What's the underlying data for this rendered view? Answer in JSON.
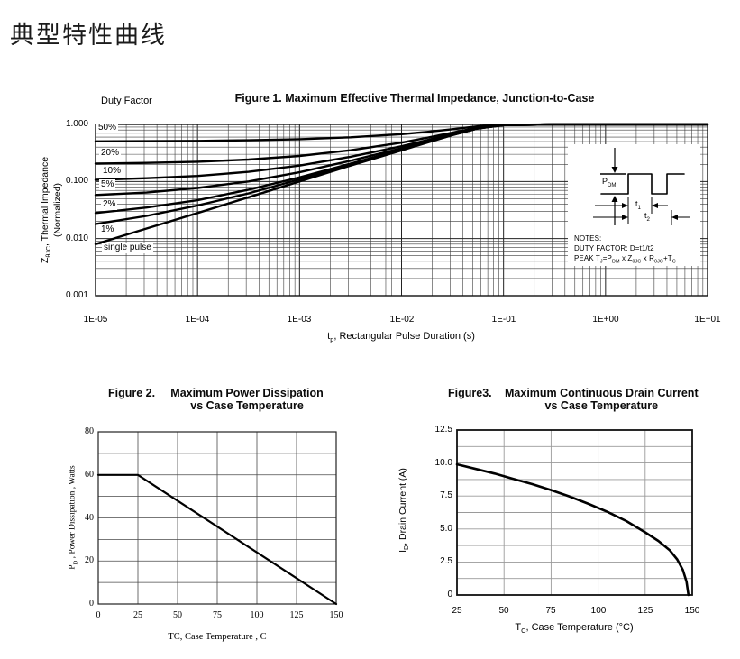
{
  "page_title": "典型特性曲线",
  "fig1": {
    "title": "Figure 1. Maximum Effective Thermal Impedance, Junction-to-Case",
    "duty_factor": "Duty Factor",
    "ylabel_line1": "Z~θJC~, Thermal Impedance",
    "ylabel_line2": "(Normalized)",
    "xlabel": "t~p~, Rectangular Pulse Duration (s)",
    "inset": {
      "pdm": "P~DM~",
      "t1": "t~1~",
      "t2": "t~2~",
      "notes1": "NOTES:",
      "notes2": "DUTY FACTOR: D=t1/t2",
      "notes3": "PEAK T~J~=P~DM~ x Z~θJC~ x R~θJC~+T~C~"
    }
  },
  "fig2": {
    "figure_label": "Figure 2.",
    "title_line1": "Maximum Power Dissipation",
    "title_line2": "vs Case Temperature",
    "ylabel": "P~D~ , Power Dissipation ,  Watts",
    "xlabel": "TC, Case Temperature , C"
  },
  "fig3": {
    "figure_label": "Figure3.",
    "title_line1": "Maximum Continuous Drain Current",
    "title_line2": "vs Case Temperature",
    "ylabel": "I~D~, Drain Current (A)",
    "xlabel": "T~C~, Case Temperature (°C)"
  },
  "chart_data": [
    {
      "id": "fig1",
      "type": "line",
      "x_scale": "log",
      "y_scale": "log",
      "title": "Figure 1. Maximum Effective Thermal Impedance, Junction-to-Case",
      "xlabel": "tp, Rectangular Pulse Duration (s)",
      "ylabel": "ZθJC, Thermal Impedance (Normalized)",
      "xlim": [
        1e-05,
        10
      ],
      "ylim": [
        0.001,
        1.0
      ],
      "grid": true,
      "xtick_labels": [
        "1E-05",
        "1E-04",
        "1E-03",
        "1E-02",
        "1E-01",
        "1E+00",
        "1E+01"
      ],
      "ytick_values": [
        1.0,
        0.1,
        0.01,
        0.001
      ],
      "ytick_labels": [
        "1.000",
        "0.100",
        "0.010",
        "0.001"
      ],
      "x_log10": [
        -5,
        -4.5,
        -4,
        -3.5,
        -3,
        -2.5,
        -2,
        -1.75,
        -1.5,
        -1.25,
        -1,
        -0.5,
        0,
        0.5,
        1
      ],
      "series": [
        {
          "name": "50%",
          "duty": 0.5,
          "values": [
            0.504,
            0.508,
            0.514,
            0.527,
            0.55,
            0.595,
            0.675,
            0.74,
            0.825,
            0.925,
            0.985,
            1,
            1,
            1,
            1
          ]
        },
        {
          "name": "20%",
          "duty": 0.2,
          "values": [
            0.206,
            0.212,
            0.222,
            0.242,
            0.28,
            0.352,
            0.48,
            0.584,
            0.72,
            0.88,
            0.976,
            1,
            1,
            1,
            1
          ]
        },
        {
          "name": "10%",
          "duty": 0.1,
          "values": [
            0.107,
            0.114,
            0.125,
            0.148,
            0.19,
            0.271,
            0.415,
            0.532,
            0.685,
            0.865,
            0.973,
            1,
            1,
            1,
            1
          ]
        },
        {
          "name": "5%",
          "duty": 0.05,
          "values": [
            0.058,
            0.064,
            0.077,
            0.1,
            0.145,
            0.231,
            0.383,
            0.506,
            0.668,
            0.858,
            0.972,
            1,
            1,
            1,
            1
          ]
        },
        {
          "name": "2%",
          "duty": 0.02,
          "values": [
            0.028,
            0.035,
            0.047,
            0.072,
            0.118,
            0.206,
            0.363,
            0.49,
            0.657,
            0.853,
            0.971,
            1,
            1,
            1,
            1
          ]
        },
        {
          "name": "1%",
          "duty": 0.01,
          "values": [
            0.018,
            0.025,
            0.038,
            0.062,
            0.109,
            0.198,
            0.357,
            0.485,
            0.654,
            0.852,
            0.97,
            1,
            1,
            1,
            1
          ]
        },
        {
          "name": "single pulse",
          "duty": 0,
          "values": [
            0.008,
            0.015,
            0.028,
            0.053,
            0.1,
            0.19,
            0.35,
            0.48,
            0.65,
            0.85,
            0.97,
            1,
            1,
            1,
            1
          ]
        }
      ]
    },
    {
      "id": "fig2",
      "type": "line",
      "title": "Figure 2. Maximum Power Dissipation vs Case Temperature",
      "xlabel": "TC, Case Temperature , C",
      "ylabel": "PD, Power Dissipation, Watts",
      "xlim": [
        0,
        150
      ],
      "ylim": [
        0,
        80
      ],
      "grid": true,
      "grid_minor_y_step": 10,
      "xtick_values": [
        0,
        25,
        50,
        75,
        100,
        125,
        150
      ],
      "xtick_labels": [
        "0",
        "25",
        "50",
        "75",
        "100",
        "125",
        "150"
      ],
      "ytick_values": [
        80,
        60,
        40,
        20,
        0
      ],
      "ytick_labels": [
        "80",
        "60",
        "40",
        "20",
        "0"
      ],
      "x": [
        0,
        25,
        150
      ],
      "y": [
        60,
        60,
        0
      ]
    },
    {
      "id": "fig3",
      "type": "line",
      "title": "Figure3. Maximum Continuous Drain Current vs Case Temperature",
      "xlabel": "TC, Case Temperature (°C)",
      "ylabel": "ID, Drain Current (A)",
      "xlim": [
        25,
        150
      ],
      "ylim": [
        0,
        12.5
      ],
      "grid": true,
      "grid_minor_y_step": 1.25,
      "xtick_values": [
        25,
        50,
        75,
        100,
        125,
        150
      ],
      "xtick_labels": [
        "25",
        "50",
        "75",
        "100",
        "125",
        "150"
      ],
      "ytick_values": [
        12.5,
        10,
        7.5,
        5,
        2.5,
        0
      ],
      "ytick_labels": [
        "12.5",
        "10.0",
        "7.5",
        "5.0",
        "2.5",
        "0"
      ],
      "x": [
        25,
        35,
        45,
        55,
        65,
        75,
        85,
        95,
        105,
        115,
        125,
        132,
        138,
        142,
        145,
        147,
        148
      ],
      "y": [
        9.9,
        9.55,
        9.2,
        8.8,
        8.4,
        7.95,
        7.45,
        6.9,
        6.3,
        5.6,
        4.75,
        4.1,
        3.4,
        2.7,
        1.9,
        1.0,
        0
      ]
    }
  ]
}
